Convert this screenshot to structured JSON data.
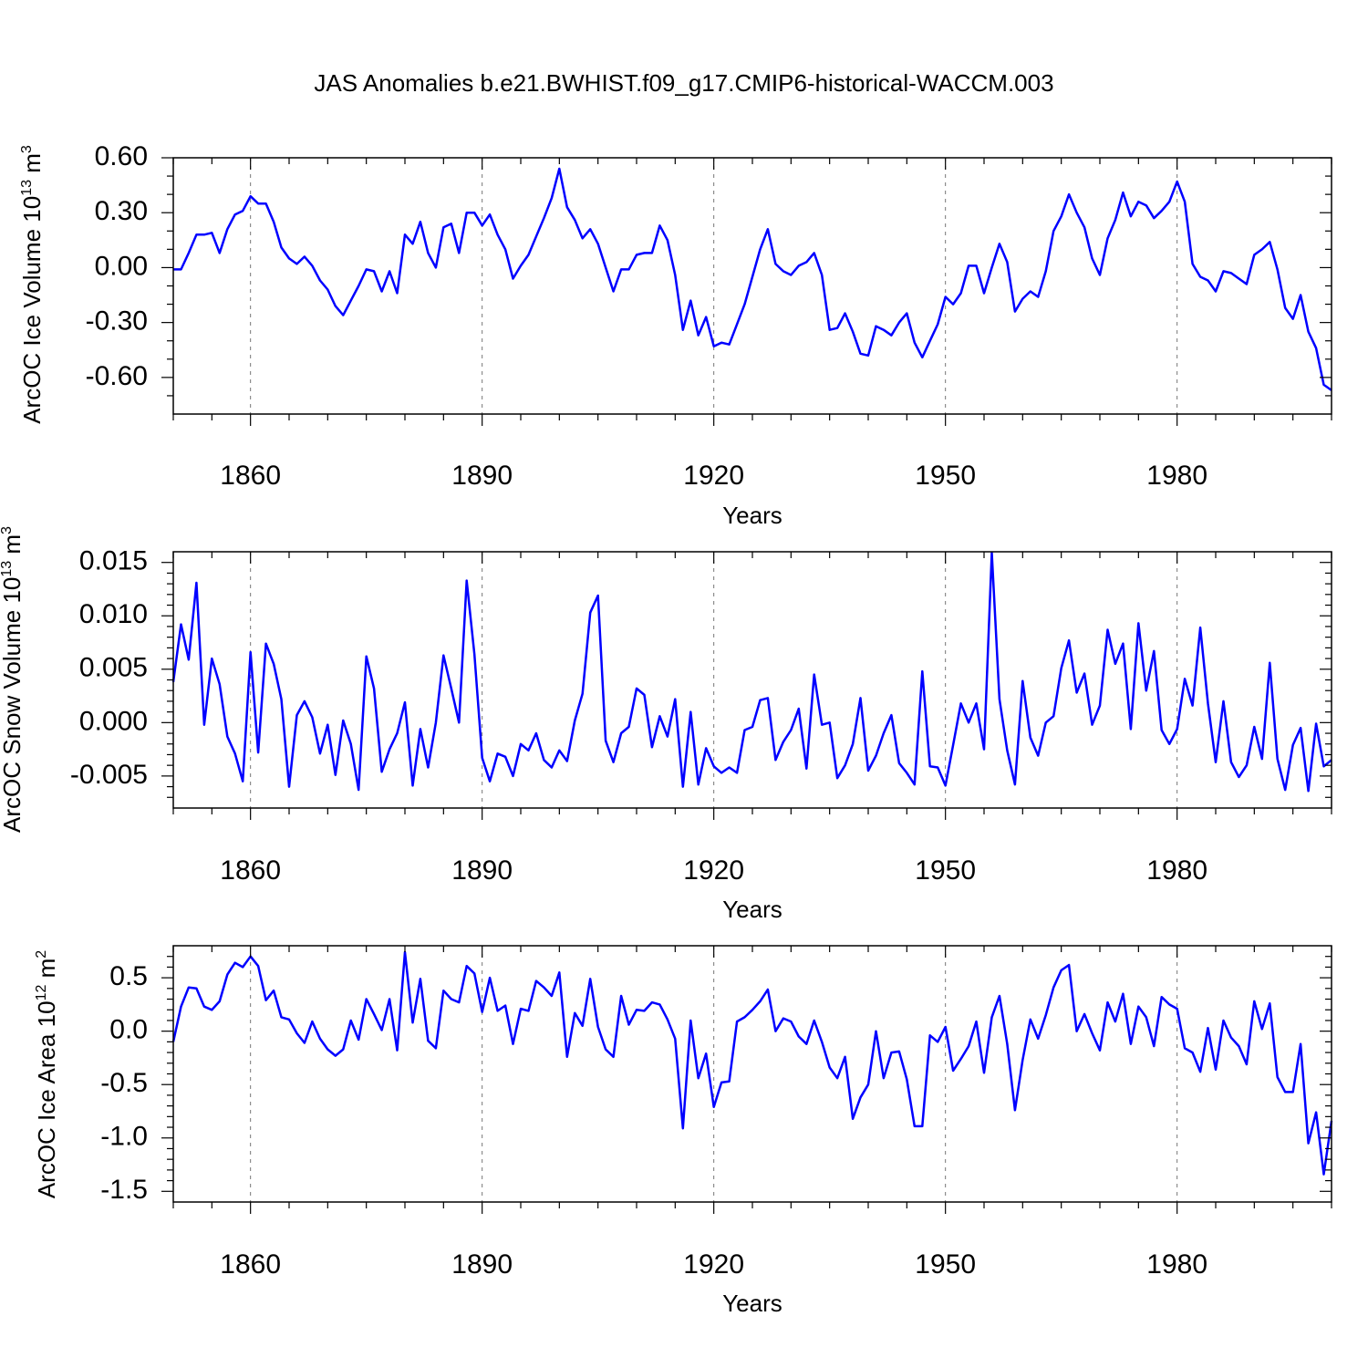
{
  "title": "JAS Anomalies b.e21.BWHIST.f09_g17.CMIP6-historical-WACCM.003",
  "line_color": "#0000ff",
  "chart_data": [
    {
      "type": "line",
      "title": "",
      "ylabel_main": "ArcOC Ice Volume 10",
      "ylabel_exp": "13",
      "ylabel_unit": " m",
      "ylabel_unit_exp": "3",
      "xlabel": "Years",
      "xlim": [
        1850,
        2000
      ],
      "ylim": [
        -0.8,
        0.6
      ],
      "yticks": [
        0.6,
        0.3,
        0.0,
        -0.3,
        -0.6
      ],
      "ytick_labels": [
        "0.60",
        "0.30",
        "0.00",
        "-0.30",
        "-0.60"
      ],
      "yminor": [
        0.5,
        0.4,
        0.2,
        0.1,
        -0.1,
        -0.2,
        -0.4,
        -0.5,
        -0.7
      ],
      "xticks": [
        1860,
        1890,
        1920,
        1950,
        1980
      ],
      "xtick_labels": [
        "1860",
        "1890",
        "1920",
        "1950",
        "1980"
      ],
      "grid": "vertical-dashed",
      "x_start": 1850,
      "values": [
        -0.01,
        -0.01,
        0.08,
        0.18,
        0.18,
        0.19,
        0.08,
        0.21,
        0.29,
        0.31,
        0.39,
        0.35,
        0.35,
        0.25,
        0.11,
        0.05,
        0.02,
        0.06,
        0.01,
        -0.07,
        -0.12,
        -0.21,
        -0.26,
        -0.18,
        -0.1,
        -0.01,
        -0.02,
        -0.13,
        -0.02,
        -0.14,
        0.18,
        0.13,
        0.25,
        0.08,
        0.0,
        0.22,
        0.24,
        0.08,
        0.3,
        0.3,
        0.23,
        0.29,
        0.18,
        0.1,
        -0.06,
        0.01,
        0.07,
        0.17,
        0.27,
        0.38,
        0.54,
        0.33,
        0.26,
        0.16,
        0.21,
        0.13,
        0.0,
        -0.13,
        -0.01,
        -0.01,
        0.07,
        0.08,
        0.08,
        0.23,
        0.15,
        -0.04,
        -0.34,
        -0.18,
        -0.37,
        -0.27,
        -0.43,
        -0.41,
        -0.42,
        -0.31,
        -0.2,
        -0.05,
        0.1,
        0.21,
        0.02,
        -0.02,
        -0.04,
        0.01,
        0.03,
        0.08,
        -0.04,
        -0.34,
        -0.33,
        -0.25,
        -0.35,
        -0.47,
        -0.48,
        -0.32,
        -0.34,
        -0.37,
        -0.3,
        -0.25,
        -0.41,
        -0.49,
        -0.4,
        -0.31,
        -0.16,
        -0.2,
        -0.14,
        0.01,
        0.01,
        -0.14,
        0.0,
        0.13,
        0.03,
        -0.24,
        -0.17,
        -0.13,
        -0.16,
        -0.02,
        0.2,
        0.28,
        0.4,
        0.3,
        0.22,
        0.05,
        -0.04,
        0.16,
        0.26,
        0.41,
        0.28,
        0.36,
        0.34,
        0.27,
        0.31,
        0.36,
        0.47,
        0.36,
        0.02,
        -0.05,
        -0.07,
        -0.13,
        -0.02,
        -0.03,
        -0.06,
        -0.09,
        0.07,
        0.1,
        0.14,
        -0.01,
        -0.22,
        -0.28,
        -0.15,
        -0.35,
        -0.44,
        -0.64,
        -0.67
      ]
    },
    {
      "type": "line",
      "title": "",
      "ylabel_main": "ArcOC Snow Volume 10",
      "ylabel_exp": "13",
      "ylabel_unit": " m",
      "ylabel_unit_exp": "3",
      "xlabel": "Years",
      "xlim": [
        1850,
        2000
      ],
      "ylim": [
        -0.008,
        0.016
      ],
      "yticks": [
        0.015,
        0.01,
        0.005,
        0.0,
        -0.005
      ],
      "ytick_labels": [
        "0.015",
        "0.010",
        "0.005",
        "0.000",
        "-0.005"
      ],
      "yminor": [
        0.014,
        0.013,
        0.012,
        0.011,
        0.009,
        0.008,
        0.007,
        0.006,
        0.004,
        0.003,
        0.002,
        0.001,
        -0.001,
        -0.002,
        -0.003,
        -0.004,
        -0.006,
        -0.007
      ],
      "xticks": [
        1860,
        1890,
        1920,
        1950,
        1980
      ],
      "xtick_labels": [
        "1860",
        "1890",
        "1920",
        "1950",
        "1980"
      ],
      "grid": "vertical-dashed",
      "x_start": 1850,
      "values": [
        0.0038,
        0.0092,
        0.0059,
        0.0131,
        -0.0002,
        0.006,
        0.0036,
        -0.0013,
        -0.0029,
        -0.0055,
        0.0066,
        -0.0028,
        0.0074,
        0.0055,
        0.0022,
        -0.006,
        0.0007,
        0.002,
        0.0005,
        -0.0029,
        -0.0002,
        -0.0049,
        0.0002,
        -0.002,
        -0.0063,
        0.0062,
        0.0032,
        -0.0046,
        -0.0025,
        -0.001,
        0.0019,
        -0.0059,
        -0.0006,
        -0.0042,
        0.0,
        0.0063,
        0.0032,
        0.0,
        0.0133,
        0.0064,
        -0.0033,
        -0.0055,
        -0.0029,
        -0.0032,
        -0.005,
        -0.002,
        -0.0026,
        -0.001,
        -0.0035,
        -0.0042,
        -0.0026,
        -0.0036,
        0.0002,
        0.0027,
        0.0103,
        0.0119,
        -0.0017,
        -0.0037,
        -0.001,
        -0.0004,
        0.0032,
        0.0026,
        -0.0023,
        0.0006,
        -0.0013,
        0.0022,
        -0.006,
        0.001,
        -0.0058,
        -0.0024,
        -0.0041,
        -0.0047,
        -0.0042,
        -0.0047,
        -0.0007,
        -0.0004,
        0.0021,
        0.0023,
        -0.0035,
        -0.0018,
        -0.0007,
        0.0013,
        -0.0043,
        0.0045,
        -0.0002,
        0.0,
        -0.0052,
        -0.004,
        -0.002,
        0.0023,
        -0.0045,
        -0.0031,
        -0.001,
        0.0007,
        -0.0038,
        -0.0047,
        -0.0058,
        0.0048,
        -0.0041,
        -0.0042,
        -0.0059,
        -0.0021,
        0.0018,
        0.0,
        0.0018,
        -0.0025,
        0.0159,
        0.0022,
        -0.0026,
        -0.0058,
        0.0039,
        -0.0014,
        -0.0031,
        0.0,
        0.0006,
        0.0051,
        0.0077,
        0.0028,
        0.0046,
        -0.0002,
        0.0016,
        0.0087,
        0.0055,
        0.0074,
        -0.0006,
        0.0093,
        0.003,
        0.0067,
        -0.0007,
        -0.002,
        -0.0006,
        0.0041,
        0.0016,
        0.0089,
        0.0018,
        -0.0037,
        0.002,
        -0.0037,
        -0.0051,
        -0.004,
        -0.0004,
        -0.0034,
        0.0056,
        -0.0034,
        -0.0063,
        -0.0021,
        -0.0005,
        -0.0064,
        -0.0001,
        -0.0041,
        -0.0035
      ]
    },
    {
      "type": "line",
      "title": "",
      "ylabel_main": "ArcOC Ice Area 10",
      "ylabel_exp": "12",
      "ylabel_unit": " m",
      "ylabel_unit_exp": "2",
      "xlabel": "Years",
      "xlim": [
        1850,
        2000
      ],
      "ylim": [
        -1.6,
        0.8
      ],
      "yticks": [
        0.5,
        0.0,
        -0.5,
        -1.0,
        -1.5
      ],
      "ytick_labels": [
        "0.5",
        "0.0",
        "-0.5",
        "-1.0",
        "-1.5"
      ],
      "yminor": [
        0.7,
        0.6,
        0.4,
        0.3,
        0.2,
        0.1,
        -0.1,
        -0.2,
        -0.3,
        -0.4,
        -0.6,
        -0.7,
        -0.8,
        -0.9,
        -1.1,
        -1.2,
        -1.3,
        -1.4
      ],
      "xticks": [
        1860,
        1890,
        1920,
        1950,
        1980
      ],
      "xtick_labels": [
        "1860",
        "1890",
        "1920",
        "1950",
        "1980"
      ],
      "grid": "vertical-dashed",
      "x_start": 1850,
      "values": [
        -0.1,
        0.23,
        0.41,
        0.4,
        0.23,
        0.2,
        0.28,
        0.53,
        0.64,
        0.6,
        0.7,
        0.61,
        0.29,
        0.38,
        0.13,
        0.11,
        -0.02,
        -0.11,
        0.09,
        -0.07,
        -0.17,
        -0.23,
        -0.17,
        0.1,
        -0.08,
        0.3,
        0.16,
        0.01,
        0.3,
        -0.18,
        0.74,
        0.08,
        0.49,
        -0.09,
        -0.16,
        0.38,
        0.3,
        0.27,
        0.61,
        0.54,
        0.18,
        0.5,
        0.19,
        0.24,
        -0.12,
        0.21,
        0.19,
        0.47,
        0.41,
        0.33,
        0.55,
        -0.24,
        0.17,
        0.05,
        0.49,
        0.04,
        -0.17,
        -0.24,
        0.33,
        0.06,
        0.2,
        0.19,
        0.27,
        0.25,
        0.11,
        -0.07,
        -0.91,
        0.1,
        -0.44,
        -0.21,
        -0.71,
        -0.48,
        -0.47,
        0.09,
        0.13,
        0.2,
        0.28,
        0.39,
        0.0,
        0.12,
        0.09,
        -0.05,
        -0.12,
        0.1,
        -0.1,
        -0.34,
        -0.44,
        -0.24,
        -0.82,
        -0.62,
        -0.5,
        0.0,
        -0.44,
        -0.2,
        -0.19,
        -0.45,
        -0.89,
        -0.89,
        -0.04,
        -0.1,
        0.04,
        -0.37,
        -0.26,
        -0.14,
        0.09,
        -0.39,
        0.13,
        0.33,
        -0.12,
        -0.74,
        -0.27,
        0.11,
        -0.07,
        0.15,
        0.41,
        0.57,
        0.62,
        0.0,
        0.16,
        -0.02,
        -0.18,
        0.27,
        0.09,
        0.35,
        -0.12,
        0.23,
        0.13,
        -0.14,
        0.32,
        0.25,
        0.21,
        -0.16,
        -0.2,
        -0.38,
        0.03,
        -0.36,
        0.1,
        -0.06,
        -0.14,
        -0.31,
        0.28,
        0.02,
        0.26,
        -0.43,
        -0.57,
        -0.57,
        -0.12,
        -1.05,
        -0.76,
        -1.34,
        -0.84
      ]
    }
  ]
}
